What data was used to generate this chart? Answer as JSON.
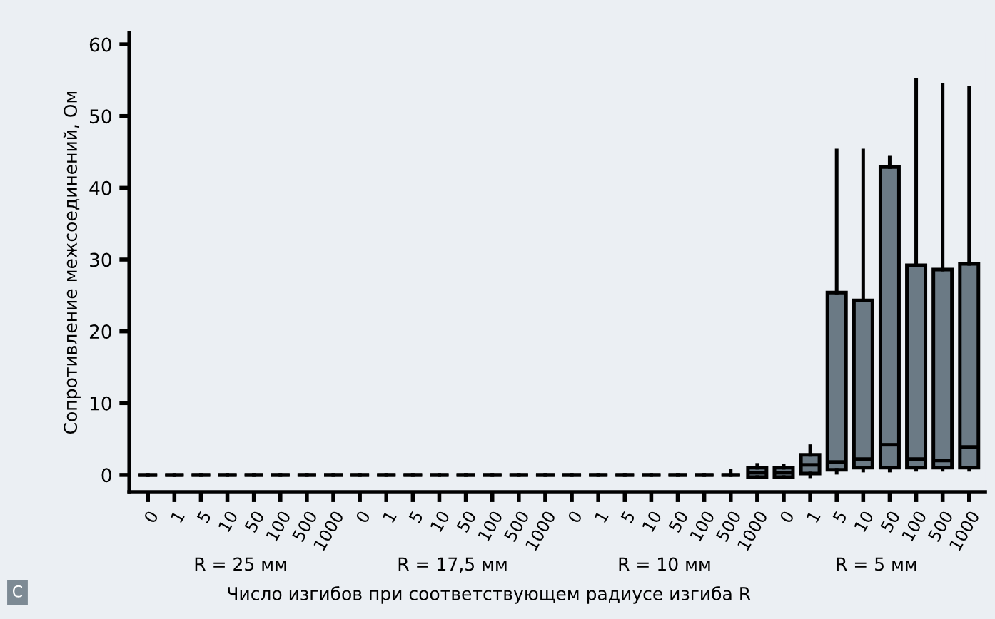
{
  "chart_data": {
    "type": "box",
    "ylabel": "Сопротивление межсоединений, Ом",
    "xlabel": "Число изгибов при соответствующем радиусе изгиба R",
    "categories": [
      "0",
      "1",
      "5",
      "10",
      "50",
      "100",
      "500",
      "1000",
      "0",
      "1",
      "5",
      "10",
      "50",
      "100",
      "500",
      "1000",
      "0",
      "1",
      "5",
      "10",
      "50",
      "100",
      "500",
      "1000",
      "0",
      "1",
      "5",
      "10",
      "50",
      "100",
      "500",
      "1000"
    ],
    "boxes": [
      {
        "low": 0,
        "q1": 0,
        "median": 0,
        "q3": 0,
        "high": 0
      },
      {
        "low": 0,
        "q1": 0,
        "median": 0,
        "q3": 0,
        "high": 0
      },
      {
        "low": 0,
        "q1": 0,
        "median": 0,
        "q3": 0,
        "high": 0
      },
      {
        "low": 0,
        "q1": 0,
        "median": 0,
        "q3": 0,
        "high": 0
      },
      {
        "low": 0,
        "q1": 0,
        "median": 0,
        "q3": 0,
        "high": 0
      },
      {
        "low": 0,
        "q1": 0,
        "median": 0,
        "q3": 0,
        "high": 0
      },
      {
        "low": 0,
        "q1": 0,
        "median": 0,
        "q3": 0,
        "high": 0
      },
      {
        "low": 0,
        "q1": 0,
        "median": 0,
        "q3": 0,
        "high": 0
      },
      {
        "low": 0,
        "q1": 0,
        "median": 0,
        "q3": 0,
        "high": 0
      },
      {
        "low": 0,
        "q1": 0,
        "median": 0,
        "q3": 0,
        "high": 0
      },
      {
        "low": 0,
        "q1": 0,
        "median": 0,
        "q3": 0,
        "high": 0
      },
      {
        "low": 0,
        "q1": 0,
        "median": 0,
        "q3": 0,
        "high": 0
      },
      {
        "low": 0,
        "q1": 0,
        "median": 0,
        "q3": 0,
        "high": 0
      },
      {
        "low": 0,
        "q1": 0,
        "median": 0,
        "q3": 0,
        "high": 0
      },
      {
        "low": 0,
        "q1": 0,
        "median": 0,
        "q3": 0,
        "high": 0
      },
      {
        "low": 0,
        "q1": 0,
        "median": 0,
        "q3": 0,
        "high": 0
      },
      {
        "low": 0,
        "q1": 0,
        "median": 0,
        "q3": 0,
        "high": 0
      },
      {
        "low": 0,
        "q1": 0,
        "median": 0,
        "q3": 0,
        "high": 0
      },
      {
        "low": 0,
        "q1": 0,
        "median": 0,
        "q3": 0,
        "high": 0
      },
      {
        "low": 0,
        "q1": 0,
        "median": 0,
        "q3": 0,
        "high": 0
      },
      {
        "low": 0,
        "q1": 0,
        "median": 0,
        "q3": 0,
        "high": 0
      },
      {
        "low": 0,
        "q1": 0,
        "median": 0,
        "q3": 0,
        "high": 0
      },
      {
        "low": 0,
        "q1": 0,
        "median": 0,
        "q3": 0,
        "high": 0.6
      },
      {
        "low": -0.3,
        "q1": -0.3,
        "median": 0.3,
        "q3": 1,
        "high": 1.4
      },
      {
        "low": -0.3,
        "q1": -0.3,
        "median": 0.3,
        "q3": 1,
        "high": 1.3
      },
      {
        "low": -0.2,
        "q1": 0.2,
        "median": 1.4,
        "q3": 2.8,
        "high": 4
      },
      {
        "low": 0.3,
        "q1": 0.7,
        "median": 1.8,
        "q3": 25.4,
        "high": 45.2
      },
      {
        "low": 0.6,
        "q1": 1,
        "median": 2.2,
        "q3": 24.3,
        "high": 45.2
      },
      {
        "low": 0.6,
        "q1": 1,
        "median": 4.2,
        "q3": 42.9,
        "high": 44.2
      },
      {
        "low": 0.7,
        "q1": 1,
        "median": 2.2,
        "q3": 29.2,
        "high": 55.1
      },
      {
        "low": 0.7,
        "q1": 1,
        "median": 2,
        "q3": 28.6,
        "high": 54.3
      },
      {
        "low": 0.7,
        "q1": 1,
        "median": 3.9,
        "q3": 29.4,
        "high": 54
      }
    ],
    "colors": [
      "#000000",
      "#000000",
      "#000000",
      "#000000",
      "#000000",
      "#000000",
      "#000000",
      "#000000",
      "#000000",
      "#000000",
      "#000000",
      "#000000",
      "#000000",
      "#000000",
      "#000000",
      "#000000",
      "#000000",
      "#000000",
      "#000000",
      "#000000",
      "#000000",
      "#000000",
      "#000000",
      "#6b7a85",
      "#6b7a85",
      "#6b7a85",
      "#6b7a85",
      "#6b7a85",
      "#6b7a85",
      "#6b7a85",
      "#6b7a85",
      "#6b7a85"
    ],
    "ylim": [
      -2.4,
      61.6
    ],
    "yticks": [
      0,
      10,
      20,
      30,
      40,
      50,
      60
    ],
    "grid": false,
    "annotations": [
      "R = 25 мм",
      "R = 17,5 мм",
      "R = 10 мм",
      "R = 5 мм",
      "C"
    ]
  }
}
